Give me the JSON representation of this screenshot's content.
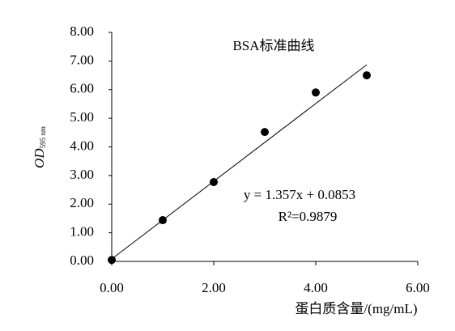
{
  "chart_data": {
    "type": "scatter",
    "title": "BSA标准曲线",
    "x_label": "蛋白质含量/(mg/mL)",
    "y_label": "OD",
    "y_label_sub": "595 nm",
    "x": [
      0,
      1,
      2,
      3,
      4,
      5
    ],
    "series": [
      {
        "color": "#000000",
        "values": [
          0.05,
          1.44,
          2.77,
          4.52,
          5.9,
          6.5
        ]
      }
    ],
    "trendline": {
      "slope": 1.357,
      "intercept": 0.0853,
      "label": "y = 1.357x + 0.0853",
      "r2_label": "R²=0.9879"
    },
    "xlim": [
      0,
      6
    ],
    "ylim": [
      0,
      8
    ],
    "xticks": [
      {
        "value": 0,
        "label": "0.00"
      },
      {
        "value": 2,
        "label": "2.00"
      },
      {
        "value": 4,
        "label": "4.00"
      },
      {
        "value": 6,
        "label": "6.00"
      }
    ],
    "yticks": [
      {
        "value": 0,
        "label": "0.00"
      },
      {
        "value": 1,
        "label": "1.00"
      },
      {
        "value": 2,
        "label": "2.00"
      },
      {
        "value": 3,
        "label": "3.00"
      },
      {
        "value": 4,
        "label": "4.00"
      },
      {
        "value": 5,
        "label": "5.00"
      },
      {
        "value": 6,
        "label": "6.00"
      },
      {
        "value": 7,
        "label": "7.00"
      },
      {
        "value": 8,
        "label": "8.00"
      }
    ],
    "grid": false
  }
}
